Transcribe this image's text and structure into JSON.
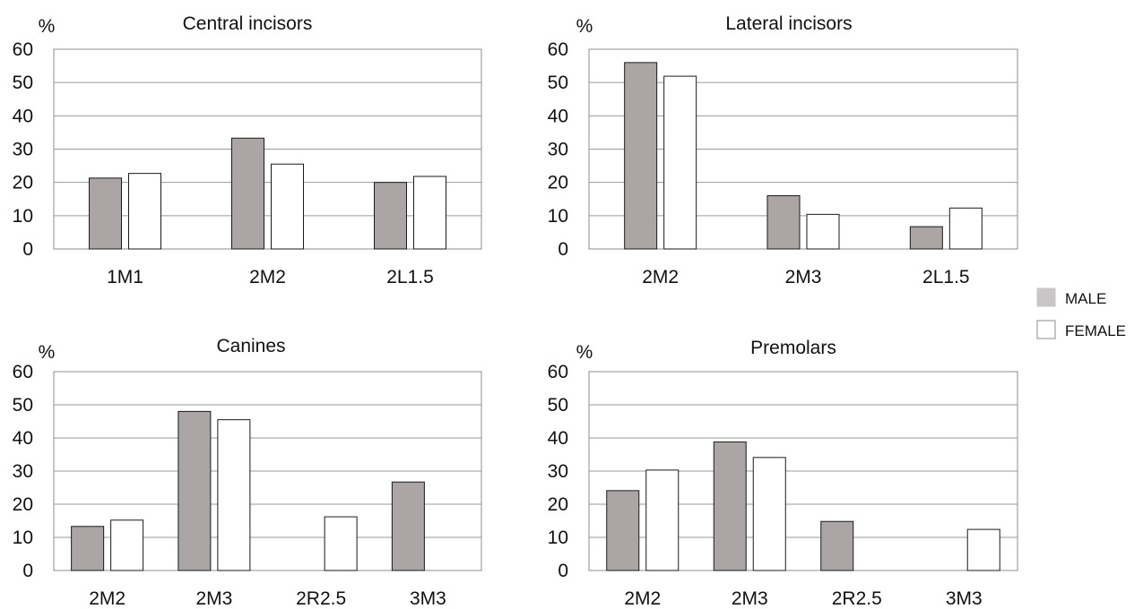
{
  "legend": {
    "position": "right",
    "items": [
      {
        "label": "MALE",
        "color": "#aba6a5"
      },
      {
        "label": "FEMALE",
        "color": "#ffffff"
      }
    ]
  },
  "chart_data": [
    {
      "type": "bar",
      "title": "Central incisors",
      "ylabel": "%",
      "ylim": [
        0,
        60
      ],
      "yticks": [
        0,
        10,
        20,
        30,
        40,
        50,
        60
      ],
      "grid": true,
      "categories": [
        "1M1",
        "2M2",
        "2L1.5"
      ],
      "series": [
        {
          "name": "MALE",
          "values": [
            21.3,
            33.3,
            20.0
          ]
        },
        {
          "name": "FEMALE",
          "values": [
            22.7,
            25.5,
            21.8
          ]
        }
      ]
    },
    {
      "type": "bar",
      "title": "Lateral incisors",
      "ylabel": "%",
      "ylim": [
        0,
        60
      ],
      "yticks": [
        0,
        10,
        20,
        30,
        40,
        50,
        60
      ],
      "grid": true,
      "categories": [
        "2M2",
        "2M3",
        "2L1.5"
      ],
      "series": [
        {
          "name": "MALE",
          "values": [
            56.0,
            16.0,
            6.7
          ]
        },
        {
          "name": "FEMALE",
          "values": [
            51.9,
            10.4,
            12.3
          ]
        }
      ]
    },
    {
      "type": "bar",
      "title": "Canines",
      "ylabel": "%",
      "ylim": [
        0,
        60
      ],
      "yticks": [
        0,
        10,
        20,
        30,
        40,
        50,
        60
      ],
      "grid": true,
      "categories": [
        "2M2",
        "2M3",
        "2R2.5",
        "3M3"
      ],
      "series": [
        {
          "name": "MALE",
          "values": [
            13.3,
            48.0,
            null,
            26.7
          ]
        },
        {
          "name": "FEMALE",
          "values": [
            15.2,
            45.5,
            16.2,
            null
          ]
        }
      ]
    },
    {
      "type": "bar",
      "title": "Premolars",
      "ylabel": "%",
      "ylim": [
        0,
        60
      ],
      "yticks": [
        0,
        10,
        20,
        30,
        40,
        50,
        60
      ],
      "grid": true,
      "categories": [
        "2M2",
        "2M3",
        "2R2.5",
        "3M3"
      ],
      "series": [
        {
          "name": "MALE",
          "values": [
            24.1,
            38.8,
            14.8,
            null
          ]
        },
        {
          "name": "FEMALE",
          "values": [
            30.3,
            34.1,
            null,
            12.4
          ]
        }
      ]
    }
  ]
}
